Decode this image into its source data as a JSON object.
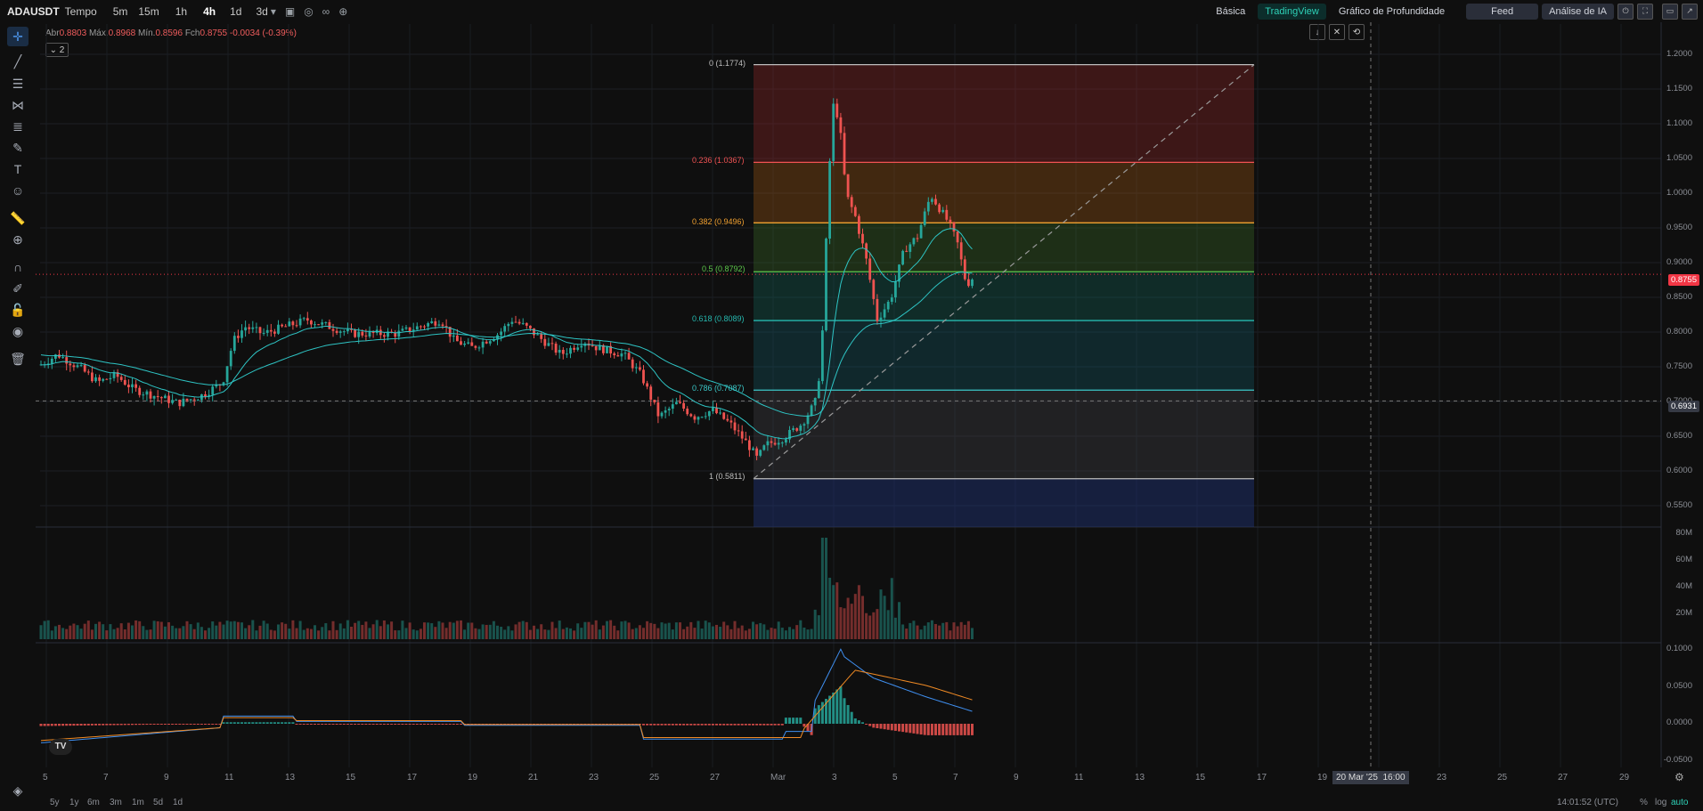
{
  "topbar": {
    "symbol": "ADAUSDT",
    "tempo_label": "Tempo",
    "timeframes": [
      "5m",
      "15m",
      "1h",
      "4h",
      "1d",
      "3d"
    ],
    "active_timeframe": "4h",
    "mode_buttons": [
      "Básica",
      "TradingView",
      "Gráfico de Profundidade"
    ],
    "active_mode": "TradingView",
    "feed_label": "Feed",
    "ai_label": "Análise de IA"
  },
  "ohlc": {
    "open_label": "Abr",
    "open": "0.8803",
    "high_label": "Máx.",
    "high": "0.8968",
    "low_label": "Mín.",
    "low": "0.8596",
    "close_label": "Fch",
    "close": "0.8755",
    "change": "-0.0034 (-0.39%)"
  },
  "indicator_count": "2",
  "price_axis": {
    "labels": [
      "1.2000",
      "1.1500",
      "1.1000",
      "1.0500",
      "1.0000",
      "0.9500",
      "0.9000",
      "0.8500",
      "0.8000",
      "0.7500",
      "0.7000",
      "0.6500",
      "0.6000",
      "0.5500"
    ],
    "last_price": "0.8755",
    "last_price_color": "#f23645",
    "cursor_price": "0.6931"
  },
  "volume_axis": [
    "80M",
    "60M",
    "40M",
    "20M"
  ],
  "macd_axis": [
    "0.1000",
    "0.0500",
    "0.0000",
    "-0.0500"
  ],
  "fib_levels": [
    {
      "label": "0 (1.1774)",
      "color": "#bdbdbd"
    },
    {
      "label": "0.236 (1.0367)",
      "color": "#f05252"
    },
    {
      "label": "0.382 (0.9496)",
      "color": "#f0a030"
    },
    {
      "label": "0.5 (0.8792)",
      "color": "#5cc74a"
    },
    {
      "label": "0.618 (0.8089)",
      "color": "#26b9b0"
    },
    {
      "label": "0.786 (0.7087)",
      "color": "#3bc6c6"
    },
    {
      "label": "1 (0.5811)",
      "color": "#bdbdbd"
    }
  ],
  "time_axis": [
    "5",
    "7",
    "9",
    "11",
    "13",
    "15",
    "17",
    "19",
    "21",
    "23",
    "25",
    "27",
    "Mar",
    "3",
    "5",
    "7",
    "9",
    "11",
    "13",
    "15",
    "17",
    "19",
    "23",
    "25",
    "27",
    "29"
  ],
  "cursor_date": "20 Mar '25",
  "cursor_time": "16:00",
  "ranges": [
    "5y",
    "1y",
    "6m",
    "3m",
    "1m",
    "5d",
    "1d"
  ],
  "clock": "14:01:52 (UTC)",
  "bottom_right": [
    "%",
    "log",
    "auto"
  ],
  "colors": {
    "up": "#26a69a",
    "down": "#ef5350",
    "ma": "#2ec4c4",
    "macd": "#3f8ff0",
    "signal": "#f08a24"
  }
}
